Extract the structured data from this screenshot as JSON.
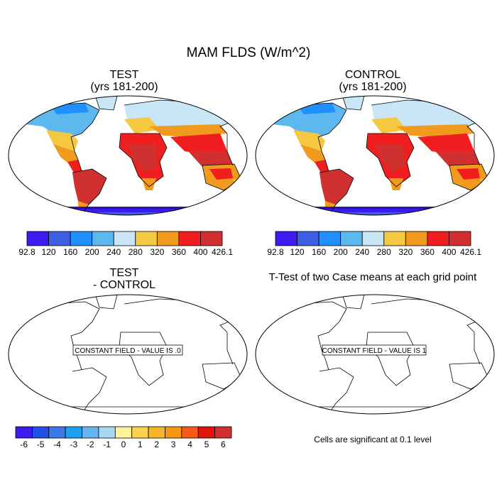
{
  "figure": {
    "title": "MAM FLDS (W/m^2)"
  },
  "panels": {
    "test": {
      "title": "TEST",
      "subtitle": "(yrs 181-200)"
    },
    "control": {
      "title": "CONTROL",
      "subtitle": "(yrs 181-200)"
    },
    "diff": {
      "title": "TEST",
      "subtitle": "- CONTROL",
      "message": "CONSTANT FIELD - VALUE IS .0"
    },
    "ttest": {
      "title": "T-Test of two Case means at each grid point",
      "message": "CONSTANT FIELD - VALUE IS 1",
      "note": "Cells are significant at 0.1 level"
    }
  },
  "colorbars": {
    "flds": {
      "colors": [
        "#3b1cf0",
        "#3b5fe0",
        "#1e90ff",
        "#5cb8ee",
        "#c8e6f5",
        "#f5c842",
        "#f09a1e",
        "#f01e1e",
        "#d03030"
      ],
      "labels": [
        "92.8",
        "120",
        "160",
        "200",
        "240",
        "280",
        "320",
        "360",
        "400",
        "426.1"
      ]
    },
    "diff": {
      "colors": [
        "#3b1cf0",
        "#2050e8",
        "#3c78e6",
        "#1ea0f0",
        "#64b4f0",
        "#a8d8f4",
        "#fff39a",
        "#fad250",
        "#f6b628",
        "#f69614",
        "#f65a14",
        "#e0140a",
        "#d03030"
      ],
      "labels": [
        "-6",
        "-5",
        "-4",
        "-3",
        "-2",
        "-1",
        "0",
        "1",
        "2",
        "3",
        "4",
        "5",
        "6"
      ]
    }
  }
}
